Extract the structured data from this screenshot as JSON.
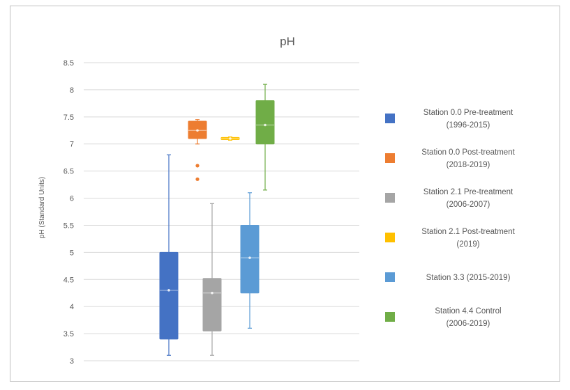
{
  "chart_data": {
    "type": "boxplot",
    "title": "pH",
    "ylabel": "pH (Standard Units)",
    "xlabel": "",
    "ylim": [
      3,
      8.5
    ],
    "yticks": [
      3,
      3.5,
      4,
      4.5,
      5,
      5.5,
      6,
      6.5,
      7,
      7.5,
      8,
      8.5
    ],
    "ytick_labels": [
      "3",
      "3.5",
      "4",
      "4.5",
      "5",
      "5.5",
      "6",
      "6.5",
      "7",
      "7.5",
      "8",
      "8.5"
    ],
    "grid": true,
    "legend_position": "right",
    "series": [
      {
        "legend": [
          "Station 0.0 Pre-treatment",
          "(1996-2015)"
        ],
        "color": "#4472c4",
        "min": 3.1,
        "q1": 3.4,
        "median": 4.3,
        "mean": 4.3,
        "q3": 5.0,
        "max": 6.8,
        "outliers": []
      },
      {
        "legend": [
          "Station 0.0 Post-treatment",
          "(2018-2019)"
        ],
        "color": "#ed7d31",
        "min": 7.0,
        "q1": 7.1,
        "median": 7.25,
        "mean": 7.25,
        "q3": 7.42,
        "max": 7.45,
        "outliers": [
          6.6,
          6.35
        ]
      },
      {
        "legend": [
          "Station 2.1 Pre-treatment",
          "(2006-2007)"
        ],
        "color": "#a5a5a5",
        "min": 3.1,
        "q1": 3.55,
        "median": 4.25,
        "mean": 4.25,
        "q3": 4.52,
        "max": 5.9,
        "outliers": []
      },
      {
        "legend": [
          "Station 2.1 Post-treatment",
          "(2019)"
        ],
        "color": "#ffc000",
        "min": 7.07,
        "q1": 7.08,
        "median": 7.1,
        "mean": 7.1,
        "q3": 7.12,
        "max": 7.13,
        "outliers": []
      },
      {
        "legend": [
          "Station 3.3 (2015-2019)"
        ],
        "color": "#5b9bd5",
        "min": 3.6,
        "q1": 4.25,
        "median": 4.9,
        "mean": 4.9,
        "q3": 5.5,
        "max": 6.1,
        "outliers": []
      },
      {
        "legend": [
          "Station 4.4 Control",
          "(2006-2019)"
        ],
        "color": "#70ad47",
        "min": 6.15,
        "q1": 7.0,
        "median": 7.35,
        "mean": 7.35,
        "q3": 7.8,
        "max": 8.1,
        "outliers": []
      }
    ]
  }
}
